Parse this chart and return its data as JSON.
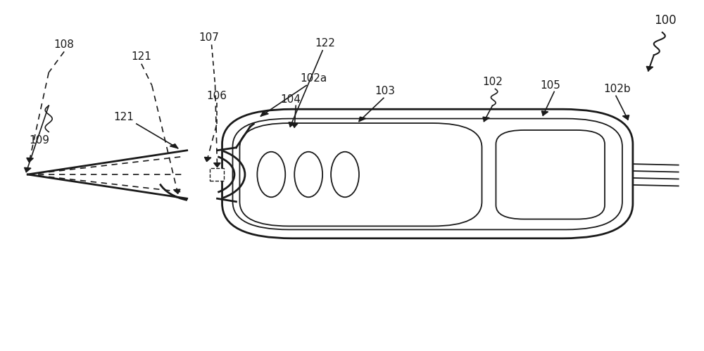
{
  "bg_color": "#ffffff",
  "line_color": "#1a1a1a",
  "label_fontsize": 11,
  "fig_width": 10.0,
  "fig_height": 4.99
}
